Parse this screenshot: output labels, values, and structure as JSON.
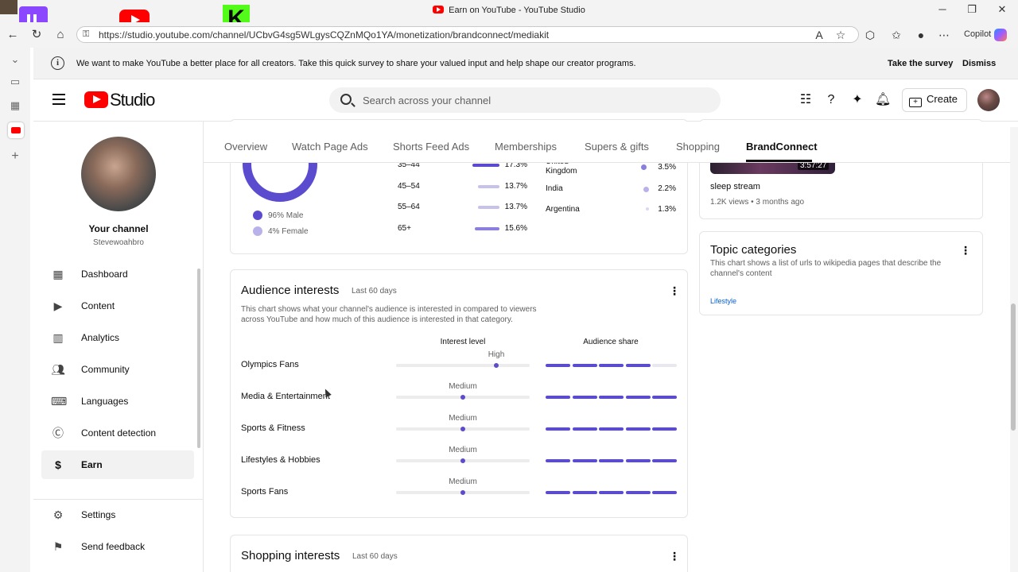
{
  "browser": {
    "window_title": "Earn on YouTube - YouTube Studio",
    "url": "https://studio.youtube.com/channel/UCbvG4sg5WLgysCQZnMQo1YA/monetization/brandconnect/mediakit",
    "copilot_label": "Copilot"
  },
  "survey": {
    "text": "We want to make YouTube a better place for all creators. Take this quick survey to share your valued input and help shape our creator programs.",
    "take_label": "Take the survey",
    "dismiss_label": "Dismiss"
  },
  "header": {
    "logo_text": "Studio",
    "search_placeholder": "Search across your channel",
    "create_label": "Create"
  },
  "sidebar": {
    "channel_title": "Your channel",
    "channel_handle": "Stevewoahbro",
    "items": [
      {
        "label": "Dashboard",
        "icon": "dashboard-icon"
      },
      {
        "label": "Content",
        "icon": "content-icon"
      },
      {
        "label": "Analytics",
        "icon": "analytics-icon"
      },
      {
        "label": "Community",
        "icon": "community-icon"
      },
      {
        "label": "Languages",
        "icon": "languages-icon"
      },
      {
        "label": "Content detection",
        "icon": "content-detection-icon"
      },
      {
        "label": "Earn",
        "icon": "dollar-icon",
        "active": true
      }
    ],
    "footer_items": [
      {
        "label": "Settings",
        "icon": "gear-icon"
      },
      {
        "label": "Send feedback",
        "icon": "feedback-icon"
      }
    ]
  },
  "tabs": [
    "Overview",
    "Watch Page Ads",
    "Shorts Feed Ads",
    "Memberships",
    "Supers & gifts",
    "Shopping",
    "BrandConnect"
  ],
  "active_tab": "BrandConnect",
  "demographics": {
    "gender": [
      {
        "label": "96% Male",
        "value": 96
      },
      {
        "label": "4% Female",
        "value": 4
      }
    ],
    "ages": [
      {
        "label": "35–44",
        "pct": "17.3%",
        "value": 17.3
      },
      {
        "label": "45–54",
        "pct": "13.7%",
        "value": 13.7
      },
      {
        "label": "55–64",
        "pct": "13.7%",
        "value": 13.7
      },
      {
        "label": "65+",
        "pct": "15.6%",
        "value": 15.6
      }
    ],
    "countries": [
      {
        "label": "United Kingdom",
        "pct": "3.5%",
        "value": 3.5
      },
      {
        "label": "India",
        "pct": "2.2%",
        "value": 2.2
      },
      {
        "label": "Argentina",
        "pct": "1.3%",
        "value": 1.3
      }
    ]
  },
  "audience_interests": {
    "title": "Audience interests",
    "period": "Last 60 days",
    "description": "This chart shows what your channel's audience is interested in compared to viewers across YouTube and how much of this audience is interested in that category.",
    "col_interest": "Interest level",
    "col_share": "Audience share",
    "rows": [
      {
        "label": "Olympics Fans",
        "level": "High",
        "level_value": 0.75,
        "share_segments": 4
      },
      {
        "label": "Media & Entertainment",
        "level": "Medium",
        "level_value": 0.5,
        "share_segments": 5
      },
      {
        "label": "Sports & Fitness",
        "level": "Medium",
        "level_value": 0.5,
        "share_segments": 5
      },
      {
        "label": "Lifestyles & Hobbies",
        "level": "Medium",
        "level_value": 0.5,
        "share_segments": 5
      },
      {
        "label": "Sports Fans",
        "level": "Medium",
        "level_value": 0.5,
        "share_segments": 5
      }
    ]
  },
  "top_video": {
    "duration": "3:57:27",
    "title": "sleep stream",
    "meta": "1.2K views • 3 months ago"
  },
  "topic_categories": {
    "title": "Topic categories",
    "description": "This chart shows a list of urls to wikipedia pages that describe the channel's content",
    "link": "Lifestyle"
  },
  "shopping_interests": {
    "title": "Shopping interests",
    "period": "Last 60 days"
  },
  "colors": {
    "accent": "#5b4ccf",
    "youtube_red": "#ff0000"
  }
}
